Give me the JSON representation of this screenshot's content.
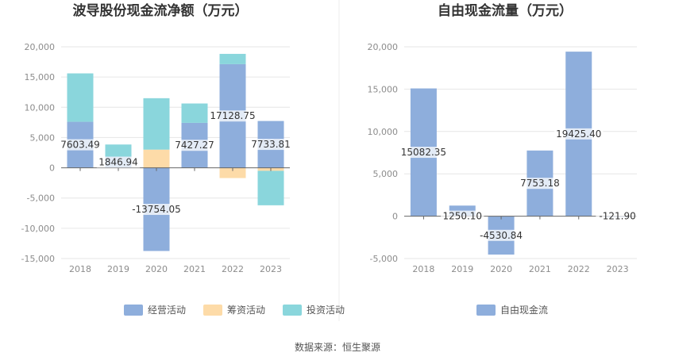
{
  "source": "数据来源：恒生聚源",
  "chart_data": [
    {
      "type": "bar",
      "stacked": true,
      "title": "波导股份现金流净额（万元）",
      "categories": [
        "2018",
        "2019",
        "2020",
        "2021",
        "2022",
        "2023"
      ],
      "series": [
        {
          "name": "经营活动",
          "color": "#8eaedc",
          "values": [
            7603.49,
            1846.94,
            -13754.05,
            7427.27,
            17128.75,
            7733.81
          ]
        },
        {
          "name": "筹资活动",
          "color": "#fddba8",
          "values": [
            0,
            0,
            3000,
            0,
            -1700,
            -500
          ]
        },
        {
          "name": "投资活动",
          "color": "#8ad6dc",
          "values": [
            8000,
            2000,
            8500,
            3200,
            1700,
            -5700
          ]
        }
      ],
      "data_labels": [
        "7603.49",
        "1846.94",
        "-13754.05",
        "7427.27",
        "17128.75",
        "7733.81"
      ],
      "ylim": [
        -15000,
        20000
      ],
      "yticks": [
        -15000,
        -10000,
        -5000,
        0,
        5000,
        10000,
        15000,
        20000
      ],
      "ytick_labels": [
        "-15,000",
        "-10,000",
        "-5,000",
        "0",
        "5,000",
        "10,000",
        "15,000",
        "20,000"
      ],
      "grid": true,
      "legend": "bottom"
    },
    {
      "type": "bar",
      "title": "自由现金流量（万元）",
      "categories": [
        "2018",
        "2019",
        "2020",
        "2021",
        "2022",
        "2023"
      ],
      "series": [
        {
          "name": "自由现金流",
          "color": "#8eaedc",
          "values": [
            15082.35,
            1250.1,
            -4530.84,
            7753.18,
            19425.4,
            -121.9
          ]
        }
      ],
      "data_labels": [
        "15082.35",
        "1250.10",
        "-4530.84",
        "7753.18",
        "19425.40",
        "-121.90"
      ],
      "ylim": [
        -5000,
        20000
      ],
      "yticks": [
        -5000,
        0,
        5000,
        10000,
        15000,
        20000
      ],
      "ytick_labels": [
        "-5,000",
        "0",
        "5,000",
        "10,000",
        "15,000",
        "20,000"
      ],
      "grid": true,
      "legend": "bottom"
    }
  ]
}
